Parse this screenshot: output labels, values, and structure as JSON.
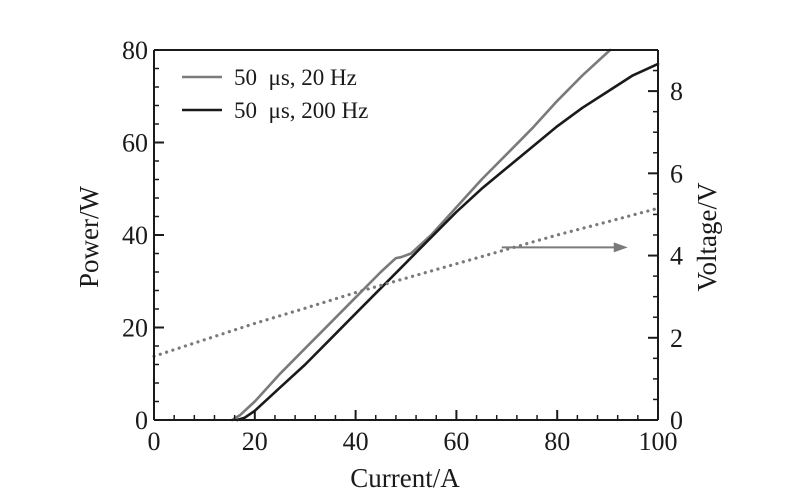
{
  "chart_data": {
    "type": "line",
    "xlabel": "Current/A",
    "ylabel": "Power/W",
    "y2label": "Voltage/V",
    "xlim": [
      0,
      100
    ],
    "ylim": [
      0,
      80
    ],
    "y2lim": [
      0,
      9
    ],
    "xticks": [
      "0",
      "20",
      "40",
      "60",
      "80",
      "100"
    ],
    "yticks": [
      "0",
      "20",
      "40",
      "60",
      "80"
    ],
    "y2ticks": [
      "0",
      "2",
      "4",
      "6",
      "8"
    ],
    "grid": false,
    "legend_position": "top-left",
    "series": [
      {
        "name": "50  μs, 20 Hz",
        "axis": "left",
        "color": "#7a7a7a",
        "style": "solid",
        "x": [
          15.5,
          17,
          20,
          25,
          30,
          35,
          40,
          45,
          48,
          49,
          51,
          55,
          60,
          65,
          70,
          75,
          80,
          85,
          90.5
        ],
        "y": [
          0,
          1,
          4,
          10,
          15.5,
          21,
          26.5,
          32,
          35,
          35.2,
          36,
          40,
          46,
          52,
          57.5,
          63,
          69,
          74.5,
          80
        ]
      },
      {
        "name": "50  μs, 200 Hz",
        "axis": "left",
        "color": "#1a1a1a",
        "style": "solid",
        "x": [
          16.5,
          18,
          20,
          25,
          30,
          35,
          40,
          45,
          50,
          55,
          60,
          65,
          70,
          75,
          80,
          85,
          90,
          95,
          100
        ],
        "y": [
          0,
          0.5,
          2,
          7,
          12,
          17.5,
          23,
          28.5,
          34,
          39.5,
          45,
          50,
          54.5,
          59,
          63.5,
          67.5,
          71,
          74.5,
          77
        ]
      },
      {
        "name": "",
        "axis": "right",
        "color": "#7a7a7a",
        "style": "dotted",
        "x": [
          0,
          10,
          20,
          30,
          40,
          50,
          60,
          70,
          80,
          90,
          100
        ],
        "y": [
          1.55,
          1.95,
          2.35,
          2.72,
          3.1,
          3.45,
          3.8,
          4.15,
          4.5,
          4.82,
          5.15
        ]
      }
    ],
    "annotations": [
      {
        "type": "arrow",
        "direction": "right",
        "from": [
          69,
          4.2
        ],
        "to": [
          94,
          4.2
        ],
        "color": "#7a7a7a"
      }
    ]
  }
}
